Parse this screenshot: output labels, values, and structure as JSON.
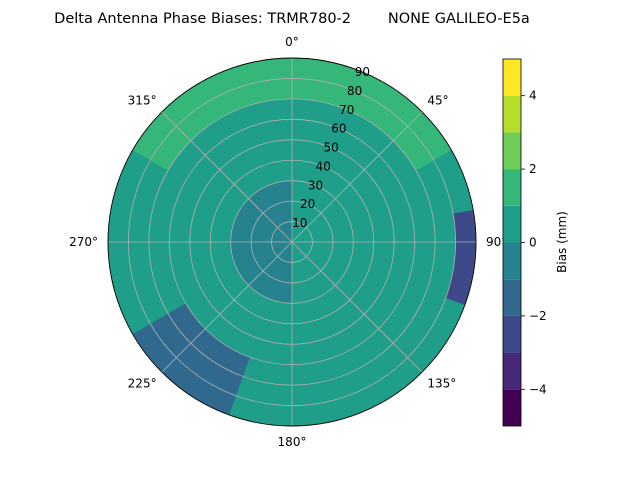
{
  "chart_data": {
    "type": "polar_contour",
    "title": "Delta Antenna Phase Biases: TRMR780-2        NONE GALILEO-E5a",
    "angular_tick_labels": [
      "0°",
      "45°",
      "90°",
      "135°",
      "180°",
      "225°",
      "270°",
      "315°"
    ],
    "radial_tick_labels": [
      "10",
      "20",
      "30",
      "40",
      "50",
      "60",
      "70",
      "80",
      "90"
    ],
    "angular_direction": "clockwise",
    "zero_location": "top",
    "radial_range": [
      0,
      90
    ],
    "grid": true,
    "colorbar": {
      "label": "Bias (mm)",
      "range": [
        -5,
        5
      ],
      "levels": [
        -5,
        -4,
        -3,
        -2,
        -1,
        0,
        1,
        2,
        3,
        4,
        5
      ],
      "tick_labels": [
        "−4",
        "−2",
        "0",
        "2",
        "4"
      ],
      "tick_values": [
        -4,
        -2,
        0,
        2,
        4
      ],
      "colors": [
        "#440154",
        "#482878",
        "#3e4989",
        "#31688e",
        "#26828e",
        "#1f9e89",
        "#35b779",
        "#6ece58",
        "#b5de2b",
        "#fde725"
      ]
    },
    "contour_regions": [
      {
        "level_range": [
          0,
          1
        ],
        "description": "center and most of disk"
      },
      {
        "level_range": [
          -1,
          0
        ],
        "azimuth_range": [
          180,
          360
        ],
        "elevation_range": [
          60,
          90
        ]
      },
      {
        "level_range": [
          1,
          2
        ],
        "azimuth_range": [
          300,
          60
        ],
        "elevation_range": [
          0,
          20
        ]
      },
      {
        "level_range": [
          -3,
          -2
        ],
        "azimuth_range": [
          80,
          110
        ],
        "elevation_range": [
          0,
          10
        ]
      },
      {
        "level_range": [
          -2,
          -1
        ],
        "azimuth_range": [
          200,
          240
        ],
        "elevation_range": [
          0,
          30
        ]
      }
    ]
  }
}
